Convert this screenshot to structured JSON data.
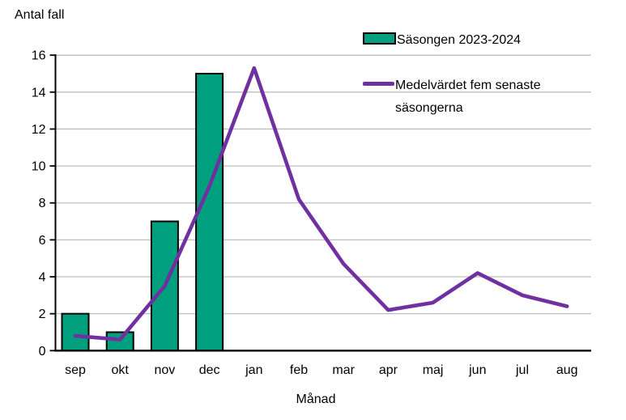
{
  "chart_data": {
    "type": "bar+line",
    "y_axis_title": "Antal fall",
    "x_axis_title": "Månad",
    "categories": [
      "sep",
      "okt",
      "nov",
      "dec",
      "jan",
      "feb",
      "mar",
      "apr",
      "maj",
      "jun",
      "jul",
      "aug"
    ],
    "series": [
      {
        "name": "Säsongen 2023-2024",
        "type": "bar",
        "color": "#00A07E",
        "values": [
          2,
          1,
          7,
          15,
          null,
          null,
          null,
          null,
          null,
          null,
          null,
          null
        ]
      },
      {
        "name": "Medelvärdet fem senaste säsongerna",
        "type": "line",
        "color": "#7030A0",
        "values": [
          0.8,
          0.6,
          3.5,
          8.9,
          15.3,
          8.2,
          4.7,
          2.2,
          2.6,
          4.2,
          3.0,
          2.4
        ]
      }
    ],
    "y_ticks": [
      0,
      2,
      4,
      6,
      8,
      10,
      12,
      14,
      16
    ],
    "ylim": [
      0,
      16
    ],
    "grid": true,
    "legend_position": "top-right",
    "colors": {
      "grid": "#BFBFBF",
      "axis": "#000000",
      "text": "#000000",
      "bar_border": "#000000"
    }
  }
}
